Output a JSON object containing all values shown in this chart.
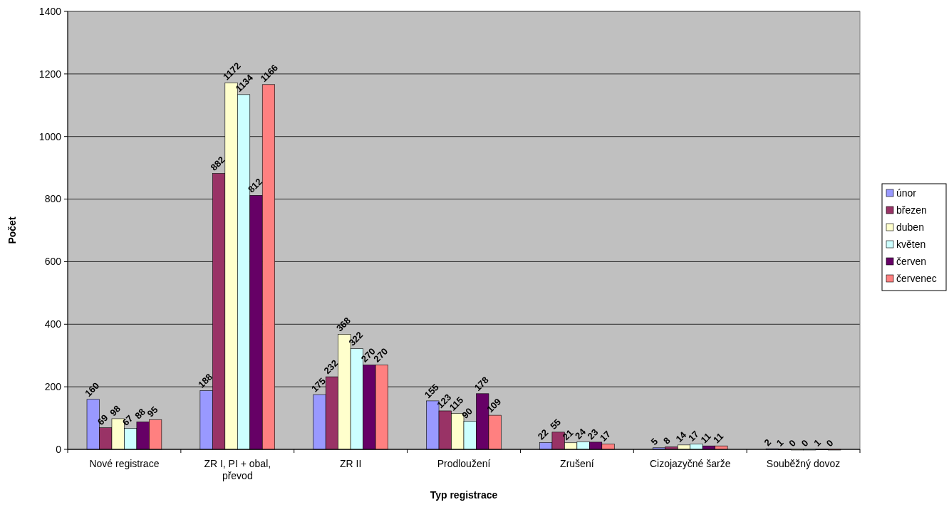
{
  "chart_data": {
    "type": "bar",
    "xlabel": "Typ registrace",
    "ylabel": "Počet",
    "categories": [
      "Nové registrace",
      "ZR I, PI + obal, převod",
      "ZR II",
      "Prodloužení",
      "Zrušení",
      "Cizojazyčné šarže",
      "Souběžný dovoz"
    ],
    "series": [
      {
        "name": "únor",
        "color": "#9999ff",
        "values": [
          160,
          188,
          175,
          155,
          22,
          5,
          2
        ]
      },
      {
        "name": "březen",
        "color": "#993366",
        "values": [
          69,
          882,
          232,
          123,
          55,
          8,
          1
        ]
      },
      {
        "name": "duben",
        "color": "#ffffcc",
        "values": [
          98,
          1172,
          368,
          115,
          21,
          14,
          0
        ]
      },
      {
        "name": "květen",
        "color": "#ccffff",
        "values": [
          67,
          1134,
          322,
          90,
          24,
          17,
          0
        ]
      },
      {
        "name": "červen",
        "color": "#660066",
        "values": [
          88,
          812,
          270,
          178,
          23,
          11,
          1
        ]
      },
      {
        "name": "červenec",
        "color": "#ff8080",
        "values": [
          95,
          1166,
          270,
          109,
          17,
          11,
          0
        ]
      }
    ],
    "ylim": [
      0,
      1400
    ],
    "yticks": [
      0,
      200,
      400,
      600,
      800,
      1000,
      1200,
      1400
    ],
    "grid": "y",
    "legend": "right",
    "data_labels": true
  }
}
